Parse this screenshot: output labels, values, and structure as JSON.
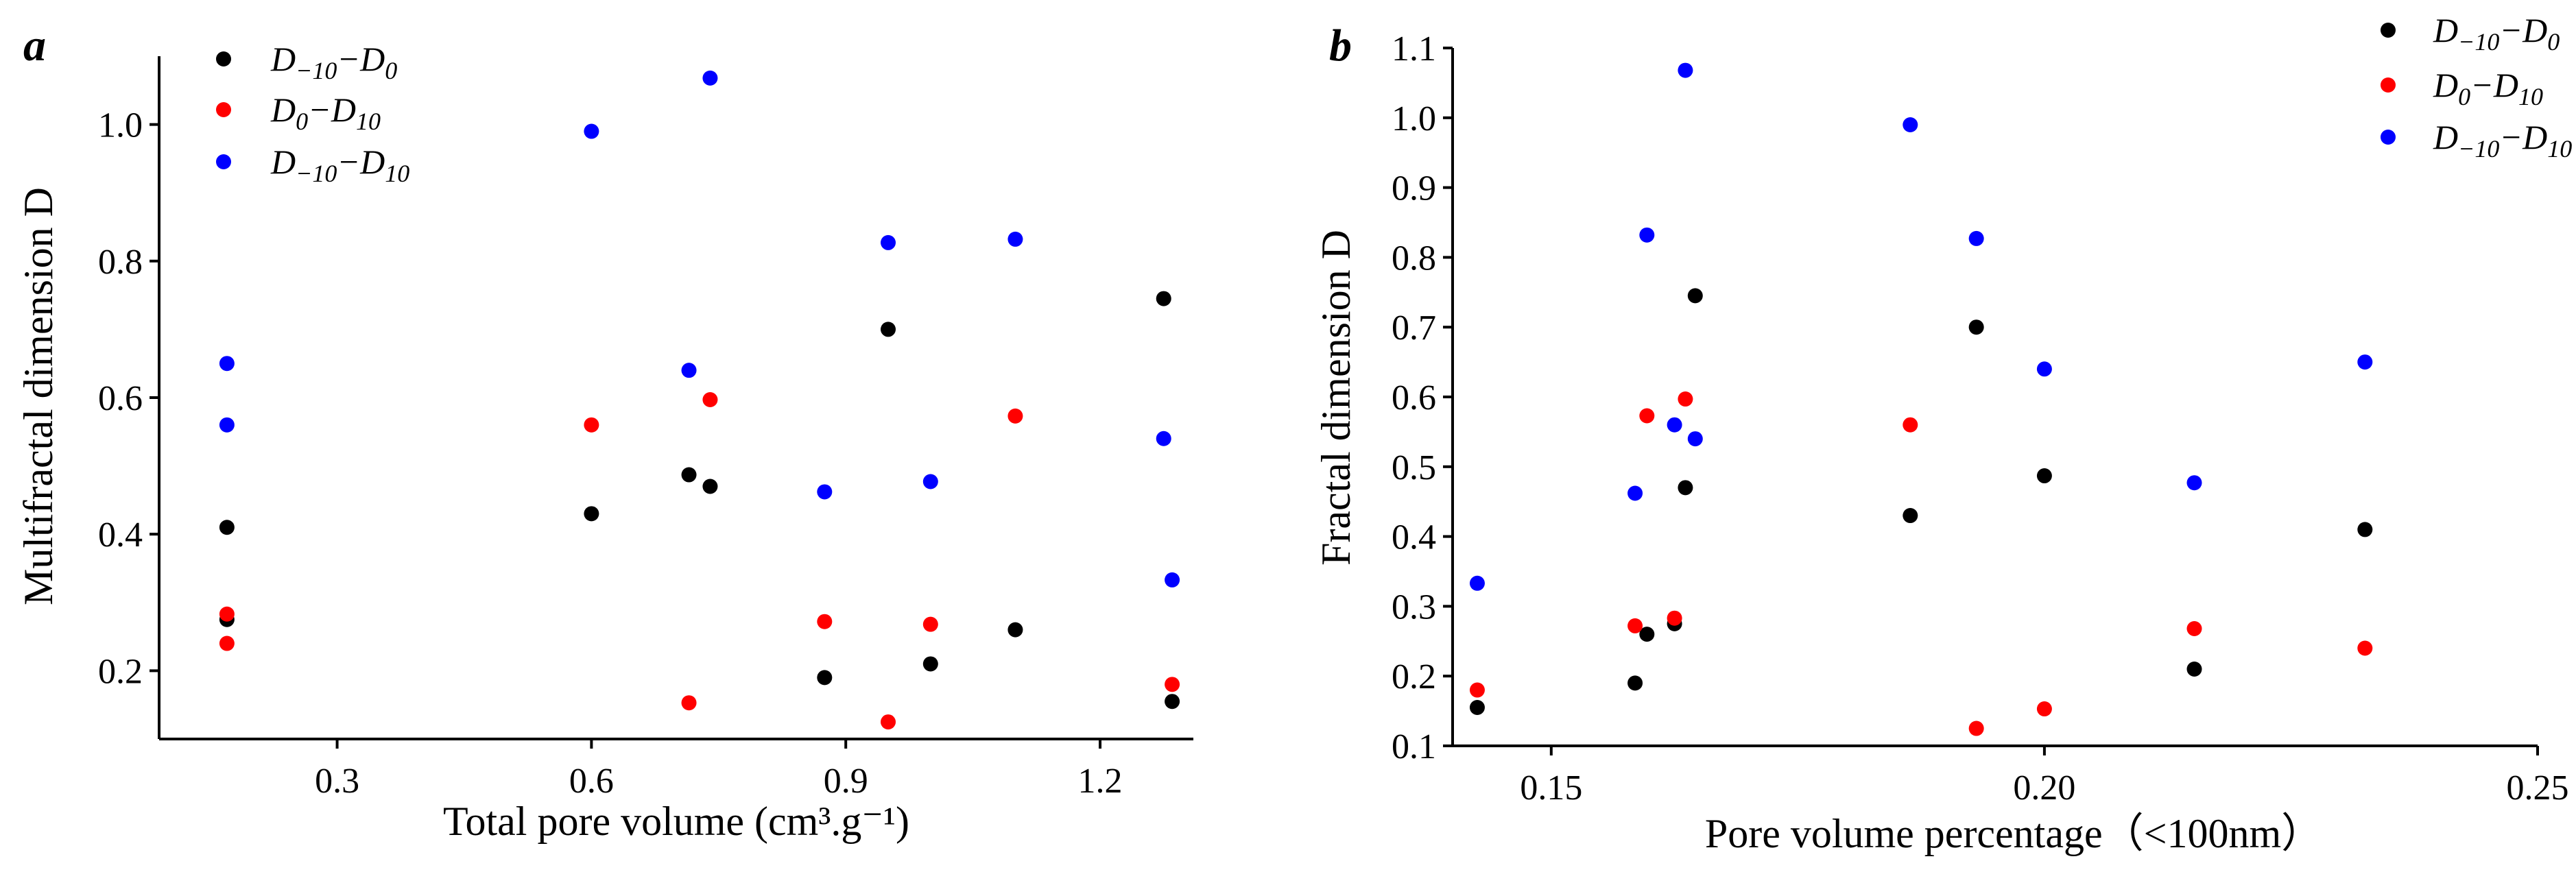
{
  "chart_data": [
    {
      "type": "scatter",
      "panel_label": "a",
      "title": "",
      "xlabel": "Total pore volume (cm³.g⁻¹)",
      "ylabel": "Multifractal dimension D",
      "xlim": [
        0.09,
        1.31
      ],
      "ylim": [
        0.1,
        1.1
      ],
      "xticks": [
        0.3,
        0.6,
        0.9,
        1.2
      ],
      "xtick_labels": [
        "0.3",
        "0.6",
        "0.9",
        "1.2"
      ],
      "yticks": [
        0.2,
        0.4,
        0.6,
        0.8,
        1.0
      ],
      "ytick_labels": [
        "0.2",
        "0.4",
        "0.6",
        "0.8",
        "1.0"
      ],
      "legend_position": "top-left",
      "series": [
        {
          "name": "D−10−D0",
          "color": "#000000",
          "x": [
            0.17,
            0.17,
            0.6,
            0.715,
            0.74,
            0.875,
            0.95,
            1.0,
            1.1,
            1.275,
            1.285
          ],
          "y": [
            0.41,
            0.275,
            0.43,
            0.487,
            0.47,
            0.19,
            0.7,
            0.21,
            0.26,
            0.745,
            0.155
          ]
        },
        {
          "name": "D0−D10",
          "color": "#ff0000",
          "x": [
            0.17,
            0.17,
            0.6,
            0.715,
            0.74,
            0.875,
            0.95,
            1.0,
            1.1,
            1.285
          ],
          "y": [
            0.283,
            0.24,
            0.56,
            0.153,
            0.597,
            0.272,
            0.125,
            0.268,
            0.573,
            0.18
          ]
        },
        {
          "name": "D−10−D10",
          "color": "#0000ff",
          "x": [
            0.17,
            0.17,
            0.6,
            0.715,
            0.74,
            0.875,
            0.95,
            1.0,
            1.1,
            1.275,
            1.285
          ],
          "y": [
            0.65,
            0.56,
            0.99,
            0.64,
            1.068,
            0.462,
            0.827,
            0.477,
            0.832,
            0.54,
            0.333
          ]
        }
      ]
    },
    {
      "type": "scatter",
      "panel_label": "b",
      "title": "",
      "xlabel": "Pore volume percentage（<100nm）",
      "ylabel": "Fractal dimension D",
      "xlim": [
        0.14,
        0.25
      ],
      "ylim": [
        0.1,
        1.1
      ],
      "xticks": [
        0.15,
        0.2,
        0.25
      ],
      "xtick_labels": [
        "0.15",
        "0.20",
        "0.25"
      ],
      "yticks": [
        0.1,
        0.2,
        0.3,
        0.4,
        0.5,
        0.6,
        0.7,
        0.8,
        0.9,
        1.0,
        1.1
      ],
      "ytick_labels": [
        "0.1",
        "0.2",
        "0.3",
        "0.4",
        "0.5",
        "0.6",
        "0.7",
        "0.8",
        "0.9",
        "1.0",
        "1.1"
      ],
      "legend_position": "top-right",
      "series": [
        {
          "name": "D−10−D0",
          "color": "#000000",
          "x": [
            0.1425,
            0.1585,
            0.1597,
            0.1625,
            0.1636,
            0.1646,
            0.1864,
            0.1931,
            0.2,
            0.2152,
            0.2325
          ],
          "y": [
            0.155,
            0.19,
            0.26,
            0.275,
            0.47,
            0.745,
            0.43,
            0.7,
            0.487,
            0.21,
            0.41
          ]
        },
        {
          "name": "D0−D10",
          "color": "#ff0000",
          "x": [
            0.1425,
            0.1585,
            0.1597,
            0.1625,
            0.1636,
            0.1864,
            0.1931,
            0.2,
            0.2152,
            0.2325
          ],
          "y": [
            0.18,
            0.272,
            0.573,
            0.283,
            0.597,
            0.56,
            0.125,
            0.153,
            0.268,
            0.24
          ]
        },
        {
          "name": "D−10−D10",
          "color": "#0000ff",
          "x": [
            0.1425,
            0.1585,
            0.1597,
            0.1625,
            0.1636,
            0.1646,
            0.1864,
            0.1931,
            0.2,
            0.2152,
            0.2325
          ],
          "y": [
            0.333,
            0.462,
            0.832,
            0.56,
            1.068,
            0.54,
            0.99,
            0.827,
            0.64,
            0.477,
            0.65
          ]
        }
      ]
    }
  ],
  "colors": {
    "black": "#000000",
    "red": "#ff0000",
    "blue": "#0000ff"
  }
}
